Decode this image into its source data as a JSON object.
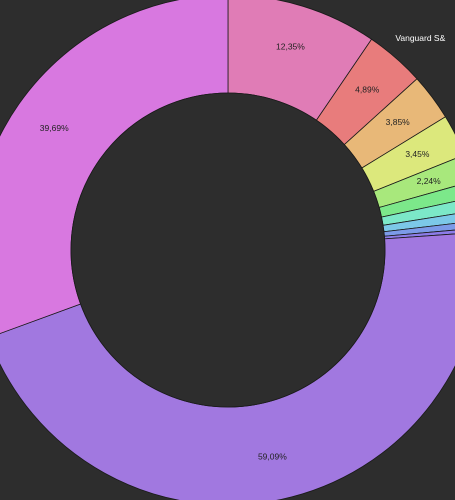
{
  "chart_data": {
    "type": "pie",
    "style": "donut",
    "slices": [
      {
        "label": "",
        "value": 59.09,
        "value_label": "59,09%",
        "color": "#a178e0"
      },
      {
        "label": "",
        "value": 39.69,
        "value_label": "39,69%",
        "color": "#d878e0"
      },
      {
        "label": "",
        "value": 12.35,
        "value_label": "12,35%",
        "color": "#e07cb6"
      },
      {
        "label": "Vanguard S&",
        "value": 4.89,
        "value_label": "4,89%",
        "color": "#e87c7c"
      },
      {
        "label": "",
        "value": 3.85,
        "value_label": "3,85%",
        "color": "#e8b878"
      },
      {
        "label": "",
        "value": 3.45,
        "value_label": "3,45%",
        "color": "#dce87c"
      },
      {
        "label": "",
        "value": 2.24,
        "value_label": "2,24%",
        "color": "#a8e87c"
      },
      {
        "label": "",
        "value": 1.3,
        "value_label": "",
        "color": "#7ce88a"
      },
      {
        "label": "",
        "value": 1.1,
        "value_label": "",
        "color": "#7ce8c8"
      },
      {
        "label": "",
        "value": 0.85,
        "value_label": "",
        "color": "#7cc8e8"
      },
      {
        "label": "",
        "value": 0.6,
        "value_label": "",
        "color": "#7c9ae8"
      },
      {
        "label": "",
        "value": 0.35,
        "value_label": "",
        "color": "#8c7ce8"
      }
    ],
    "background": "#2d2d2d",
    "hole_color": "#2d2d2d",
    "stroke_color": "#1a1a1a"
  }
}
